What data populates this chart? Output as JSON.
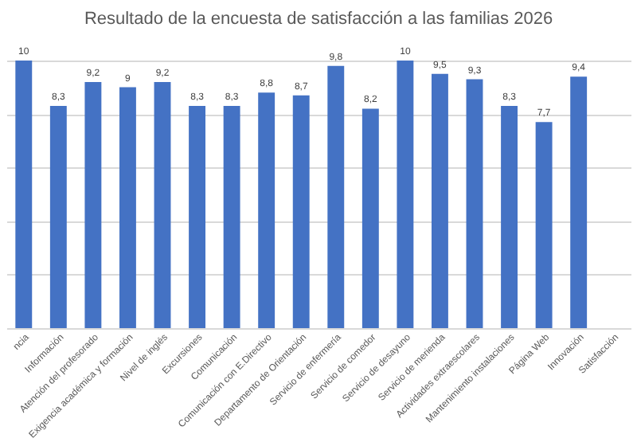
{
  "chart_data": {
    "type": "bar",
    "title": "Resultado de la encuesta de satisfacción a las familias 2026",
    "categories": [
      "ncia",
      "Información",
      "Atención del profesorado",
      "Exigencia académica y formación",
      "Nivel de inglés",
      "Excursiones",
      "Comunicación",
      "Comunicación con E.Directivo",
      "Departamento de Orientación",
      "Servicio de enfermería",
      "Servicio de comedor",
      "Servicio de desayuno",
      "Servicio de merienda",
      "Actividades extraescolares",
      "Mantenimiento instalaciones",
      "Página Web",
      "Innovación",
      "Satisfacción"
    ],
    "values": [
      10,
      8.3,
      9.2,
      9,
      9.2,
      8.3,
      8.3,
      8.8,
      8.7,
      9.8,
      8.2,
      10,
      9.5,
      9.3,
      8.3,
      7.7,
      9.4,
      null
    ],
    "value_labels": [
      "10",
      "8,3",
      "9,2",
      "9",
      "9,2",
      "8,3",
      "8,3",
      "8,8",
      "8,7",
      "9,8",
      "8,2",
      "10",
      "9,5",
      "9,3",
      "8,3",
      "7,7",
      "9,4",
      null
    ],
    "color": "#4472c4",
    "grid": "y",
    "tick_labels": "x"
  }
}
